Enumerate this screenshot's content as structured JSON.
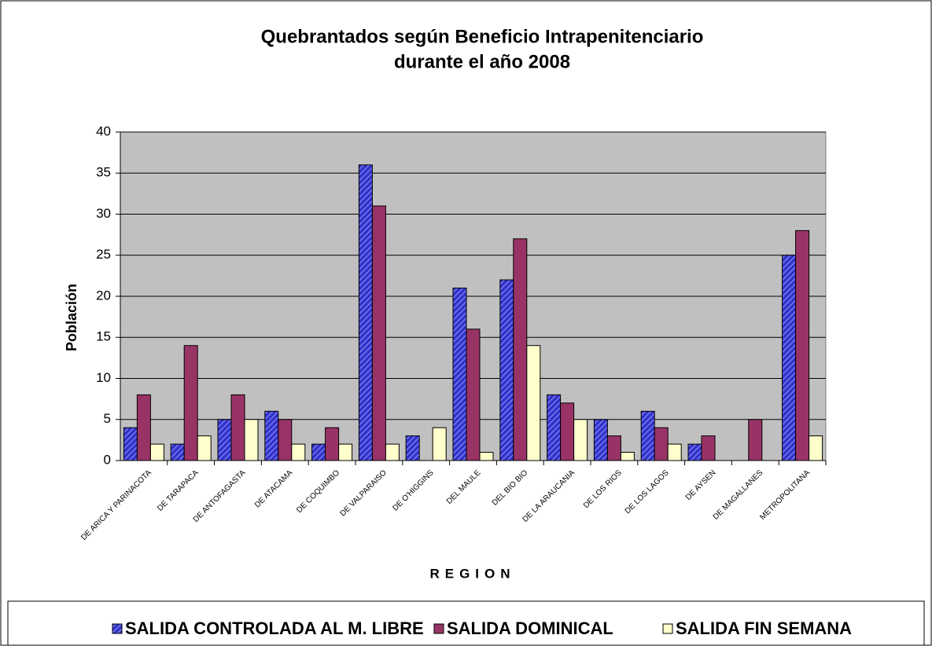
{
  "chart_data": {
    "type": "bar",
    "title": [
      "Quebrantados según Beneficio Intrapenitenciario",
      "durante el año 2008"
    ],
    "x_label": "REGION",
    "y_label": "Población",
    "categories": [
      "DE ARICA Y PARINACOTA",
      "DE TARAPACA",
      "DE ANTOFAGASTA",
      "DE ATACAMA",
      "DE COQUIMBO",
      "DE VALPARAISO",
      "DE O'HIGGINS",
      "DEL MAULE",
      "DEL BIO BIO",
      "DE LA ARAUCANIA",
      "DE LOS RIOS",
      "DE LOS LAGOS",
      "DE AYSEN",
      "DE MAGALLANES",
      "METROPOLITANA"
    ],
    "series": [
      {
        "name": "SALIDA CONTROLADA AL M. LIBRE",
        "color": "#3333cc",
        "pattern": "hatch",
        "values": [
          4,
          2,
          5,
          6,
          2,
          36,
          3,
          21,
          22,
          8,
          5,
          6,
          2,
          0,
          25
        ]
      },
      {
        "name": "SALIDA DOMINICAL",
        "color": "#993366",
        "values": [
          8,
          14,
          8,
          5,
          4,
          31,
          0,
          16,
          27,
          7,
          3,
          4,
          3,
          5,
          28
        ]
      },
      {
        "name": "SALIDA FIN SEMANA",
        "color": "#ffffcc",
        "values": [
          2,
          3,
          5,
          2,
          2,
          2,
          4,
          1,
          14,
          5,
          1,
          2,
          0,
          0,
          3
        ]
      }
    ],
    "ylim": [
      0,
      40
    ],
    "yticks": [
      0,
      5,
      10,
      15,
      20,
      25,
      30,
      35,
      40
    ],
    "grid": true,
    "legend": "bottom"
  }
}
